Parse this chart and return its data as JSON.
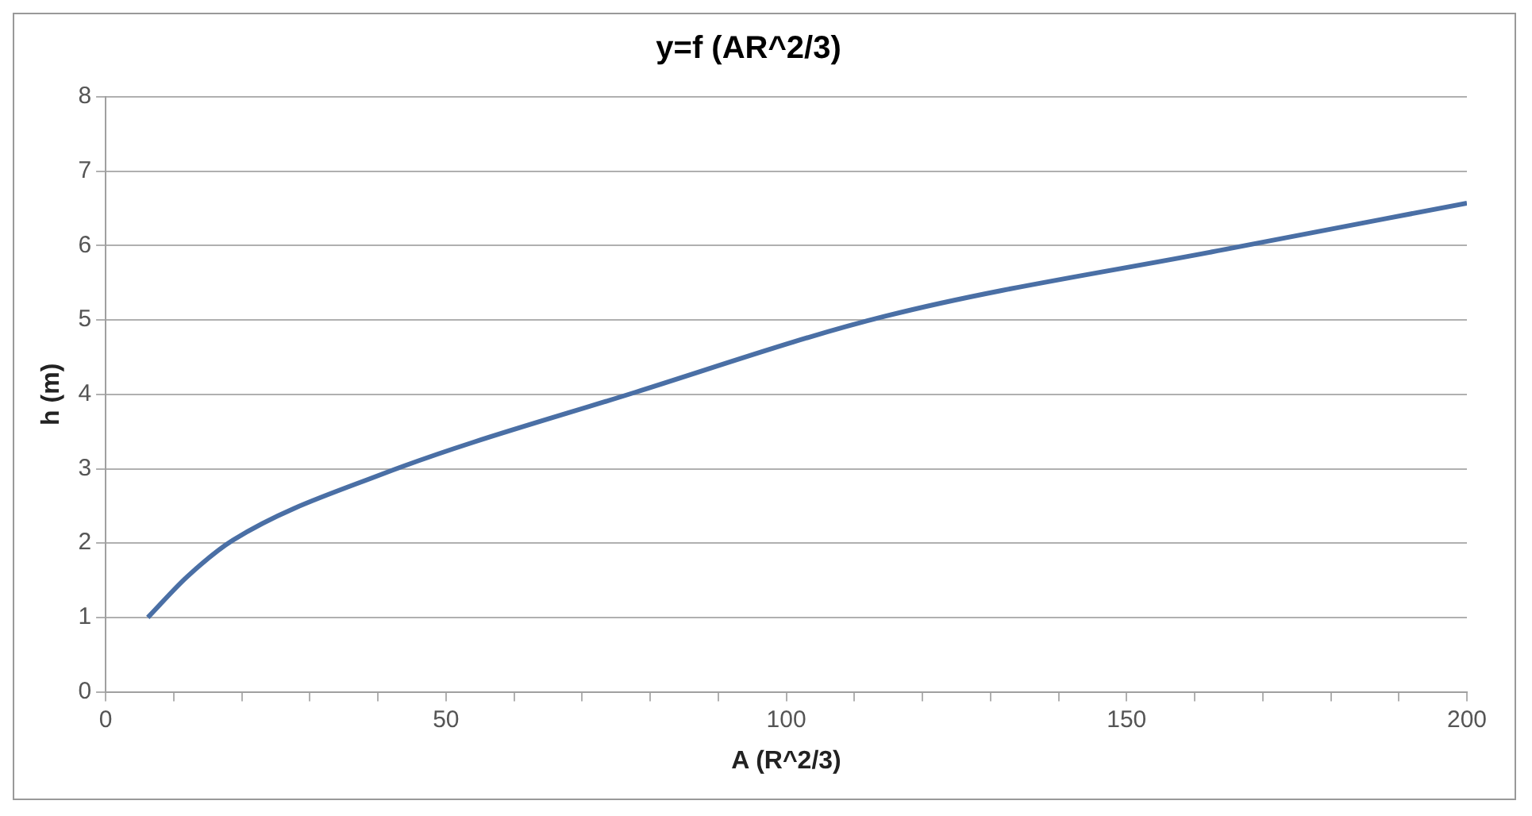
{
  "chart_data": {
    "type": "line",
    "title": "y=f (AR^2/3)",
    "xlabel": "A (R^2/3)",
    "ylabel": "h (m)",
    "x": [
      6.2,
      12,
      18.7,
      40.4,
      77.9,
      114.5,
      164.5,
      200
    ],
    "series": [
      {
        "color": "#4a6fa5",
        "values": [
          1,
          1.55,
          2.04,
          2.92,
          4.03,
          5.05,
          5.95,
          6.57
        ]
      }
    ],
    "xlim": [
      0,
      200
    ],
    "xticks": [
      0,
      {
        "value": 10,
        "label": null
      },
      {
        "value": 20,
        "label": null
      },
      {
        "value": 30,
        "label": null
      },
      {
        "value": 40,
        "label": null
      },
      50,
      {
        "value": 60,
        "label": null
      },
      {
        "value": 70,
        "label": null
      },
      {
        "value": 80,
        "label": null
      },
      {
        "value": 90,
        "label": null
      },
      100,
      {
        "value": 110,
        "label": null
      },
      {
        "value": 120,
        "label": null
      },
      {
        "value": 130,
        "label": null
      },
      {
        "value": 140,
        "label": null
      },
      150,
      {
        "value": 160,
        "label": null
      },
      {
        "value": 170,
        "label": null
      },
      {
        "value": 180,
        "label": null
      },
      {
        "value": 190,
        "label": null
      },
      200
    ],
    "ylim": [
      0,
      8
    ],
    "yticks": [
      0,
      1,
      2,
      3,
      4,
      5,
      6,
      7,
      8
    ],
    "grid": "y",
    "legend": false,
    "marker": "none",
    "line_style": "solid"
  }
}
